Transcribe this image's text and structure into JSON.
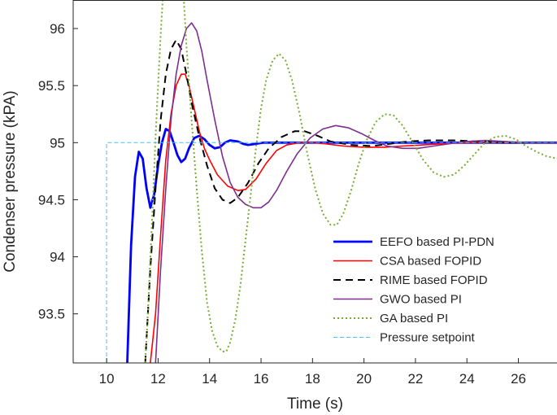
{
  "chart_data": {
    "type": "line",
    "title": "",
    "xlabel": "Time (s)",
    "ylabel": "Condenser pressure (kPA)",
    "xlim": [
      8.7,
      27.5
    ],
    "ylim": [
      93.07,
      96.25
    ],
    "xticks": [
      10,
      12,
      14,
      16,
      18,
      20,
      22,
      24,
      26
    ],
    "yticks": [
      93.5,
      94,
      94.5,
      95,
      95.5,
      96
    ],
    "legend_position": "bottom-right",
    "series": [
      {
        "name": "EEFO based PI-PDN",
        "color": "#0000ff",
        "style": "solid-thick",
        "points": [
          [
            10.8,
            93.07
          ],
          [
            10.95,
            94.1
          ],
          [
            11.1,
            94.7
          ],
          [
            11.25,
            94.92
          ],
          [
            11.4,
            94.86
          ],
          [
            11.55,
            94.6
          ],
          [
            11.7,
            94.43
          ],
          [
            11.85,
            94.55
          ],
          [
            12.0,
            94.8
          ],
          [
            12.15,
            95.0
          ],
          [
            12.3,
            95.12
          ],
          [
            12.45,
            95.1
          ],
          [
            12.6,
            95.0
          ],
          [
            12.75,
            94.89
          ],
          [
            12.9,
            94.83
          ],
          [
            13.05,
            94.86
          ],
          [
            13.2,
            94.95
          ],
          [
            13.4,
            95.04
          ],
          [
            13.6,
            95.06
          ],
          [
            13.8,
            95.03
          ],
          [
            14.0,
            94.98
          ],
          [
            14.2,
            94.95
          ],
          [
            14.4,
            94.96
          ],
          [
            14.6,
            95.0
          ],
          [
            14.8,
            95.02
          ],
          [
            15.1,
            95.01
          ],
          [
            15.3,
            94.99
          ],
          [
            15.5,
            94.98
          ],
          [
            15.8,
            94.99
          ],
          [
            16.1,
            95.0
          ],
          [
            16.6,
            95.0
          ],
          [
            17.5,
            95.0
          ],
          [
            20.0,
            95.0
          ],
          [
            27.5,
            95.0
          ]
        ]
      },
      {
        "name": "CSA based FOPID",
        "color": "#ff0000",
        "style": "solid",
        "points": [
          [
            11.7,
            93.07
          ],
          [
            11.9,
            93.5
          ],
          [
            12.1,
            94.2
          ],
          [
            12.3,
            94.85
          ],
          [
            12.5,
            95.25
          ],
          [
            12.7,
            95.5
          ],
          [
            12.9,
            95.6
          ],
          [
            13.05,
            95.6
          ],
          [
            13.2,
            95.5
          ],
          [
            13.4,
            95.3
          ],
          [
            13.6,
            95.1
          ],
          [
            13.8,
            94.95
          ],
          [
            14.0,
            94.85
          ],
          [
            14.3,
            94.72
          ],
          [
            14.7,
            94.62
          ],
          [
            15.1,
            94.58
          ],
          [
            15.4,
            94.59
          ],
          [
            15.8,
            94.68
          ],
          [
            16.2,
            94.82
          ],
          [
            16.6,
            94.93
          ],
          [
            17.0,
            94.98
          ],
          [
            17.5,
            95.0
          ],
          [
            18.0,
            95.0
          ],
          [
            18.5,
            94.99
          ],
          [
            19.2,
            94.97
          ],
          [
            20.0,
            94.96
          ],
          [
            20.8,
            94.96
          ],
          [
            21.5,
            94.97
          ],
          [
            22.3,
            94.98
          ],
          [
            23.0,
            94.99
          ],
          [
            24.0,
            95.0
          ],
          [
            25.0,
            95.0
          ],
          [
            27.5,
            95.0
          ]
        ]
      },
      {
        "name": "RIME based FOPID",
        "color": "#000000",
        "style": "dashed",
        "points": [
          [
            11.5,
            93.07
          ],
          [
            11.7,
            93.9
          ],
          [
            11.9,
            94.6
          ],
          [
            12.1,
            95.2
          ],
          [
            12.3,
            95.6
          ],
          [
            12.5,
            95.82
          ],
          [
            12.7,
            95.9
          ],
          [
            12.9,
            95.82
          ],
          [
            13.1,
            95.6
          ],
          [
            13.3,
            95.35
          ],
          [
            13.6,
            95.05
          ],
          [
            13.9,
            94.8
          ],
          [
            14.2,
            94.6
          ],
          [
            14.5,
            94.5
          ],
          [
            14.8,
            94.47
          ],
          [
            15.1,
            94.52
          ],
          [
            15.5,
            94.65
          ],
          [
            15.9,
            94.82
          ],
          [
            16.3,
            94.95
          ],
          [
            16.8,
            95.05
          ],
          [
            17.3,
            95.1
          ],
          [
            17.7,
            95.1
          ],
          [
            18.2,
            95.06
          ],
          [
            18.7,
            95.01
          ],
          [
            19.5,
            94.98
          ],
          [
            20.3,
            94.97
          ],
          [
            21.0,
            94.99
          ],
          [
            21.7,
            95.01
          ],
          [
            22.5,
            95.02
          ],
          [
            23.5,
            95.02
          ],
          [
            24.5,
            95.01
          ],
          [
            25.5,
            95.0
          ],
          [
            27.5,
            95.0
          ]
        ]
      },
      {
        "name": "GWO based PI",
        "color": "#7e2f8e",
        "style": "solid",
        "points": [
          [
            11.9,
            93.07
          ],
          [
            12.1,
            93.9
          ],
          [
            12.3,
            94.6
          ],
          [
            12.5,
            95.2
          ],
          [
            12.7,
            95.6
          ],
          [
            12.9,
            95.85
          ],
          [
            13.1,
            96.0
          ],
          [
            13.3,
            96.05
          ],
          [
            13.5,
            95.98
          ],
          [
            13.7,
            95.8
          ],
          [
            13.9,
            95.55
          ],
          [
            14.2,
            95.2
          ],
          [
            14.5,
            94.88
          ],
          [
            14.8,
            94.65
          ],
          [
            15.1,
            94.52
          ],
          [
            15.4,
            94.46
          ],
          [
            15.7,
            94.43
          ],
          [
            16.0,
            94.43
          ],
          [
            16.3,
            94.48
          ],
          [
            16.6,
            94.58
          ],
          [
            17.0,
            94.75
          ],
          [
            17.4,
            94.9
          ],
          [
            17.9,
            95.04
          ],
          [
            18.4,
            95.12
          ],
          [
            18.9,
            95.15
          ],
          [
            19.4,
            95.13
          ],
          [
            19.9,
            95.08
          ],
          [
            20.4,
            95.02
          ],
          [
            20.9,
            94.97
          ],
          [
            21.5,
            94.95
          ],
          [
            22.1,
            94.95
          ],
          [
            22.7,
            94.97
          ],
          [
            23.3,
            94.99
          ],
          [
            24.0,
            95.01
          ],
          [
            24.7,
            95.02
          ],
          [
            25.5,
            95.01
          ],
          [
            26.3,
            95.0
          ],
          [
            27.5,
            95.0
          ]
        ]
      },
      {
        "name": "GA based PI",
        "color": "#77ac30",
        "style": "dotted",
        "points": [
          [
            11.5,
            93.07
          ],
          [
            11.6,
            93.5
          ],
          [
            11.7,
            94.0
          ],
          [
            11.8,
            94.5
          ],
          [
            11.9,
            95.05
          ],
          [
            12.0,
            95.5
          ],
          [
            12.1,
            95.95
          ],
          [
            12.18,
            96.25
          ],
          [
            13.0,
            96.25
          ],
          [
            13.1,
            95.85
          ],
          [
            13.3,
            95.2
          ],
          [
            13.5,
            94.6
          ],
          [
            13.7,
            94.05
          ],
          [
            13.9,
            93.6
          ],
          [
            14.1,
            93.35
          ],
          [
            14.3,
            93.22
          ],
          [
            14.5,
            93.17
          ],
          [
            14.65,
            93.17
          ],
          [
            14.8,
            93.25
          ],
          [
            15.0,
            93.45
          ],
          [
            15.2,
            93.75
          ],
          [
            15.4,
            94.15
          ],
          [
            15.6,
            94.55
          ],
          [
            15.8,
            94.95
          ],
          [
            16.0,
            95.3
          ],
          [
            16.2,
            95.55
          ],
          [
            16.45,
            95.72
          ],
          [
            16.7,
            95.78
          ],
          [
            16.95,
            95.72
          ],
          [
            17.2,
            95.55
          ],
          [
            17.5,
            95.25
          ],
          [
            17.8,
            94.9
          ],
          [
            18.1,
            94.6
          ],
          [
            18.4,
            94.38
          ],
          [
            18.7,
            94.28
          ],
          [
            18.95,
            94.28
          ],
          [
            19.2,
            94.38
          ],
          [
            19.5,
            94.58
          ],
          [
            19.8,
            94.82
          ],
          [
            20.1,
            95.02
          ],
          [
            20.45,
            95.18
          ],
          [
            20.8,
            95.25
          ],
          [
            21.15,
            95.24
          ],
          [
            21.5,
            95.15
          ],
          [
            21.9,
            95.0
          ],
          [
            22.3,
            94.85
          ],
          [
            22.7,
            94.74
          ],
          [
            23.1,
            94.7
          ],
          [
            23.5,
            94.72
          ],
          [
            23.9,
            94.8
          ],
          [
            24.3,
            94.9
          ],
          [
            24.7,
            95.0
          ],
          [
            25.1,
            95.05
          ],
          [
            25.5,
            95.06
          ],
          [
            25.9,
            95.03
          ],
          [
            26.3,
            94.97
          ],
          [
            26.7,
            94.92
          ],
          [
            27.1,
            94.88
          ],
          [
            27.5,
            94.86
          ]
        ]
      },
      {
        "name": "Pressure setpoint",
        "color": "#4dbeee",
        "style": "dashed-thin",
        "points": [
          [
            10.0,
            93.07
          ],
          [
            10.0,
            95.0
          ],
          [
            27.5,
            95.0
          ]
        ]
      }
    ]
  }
}
